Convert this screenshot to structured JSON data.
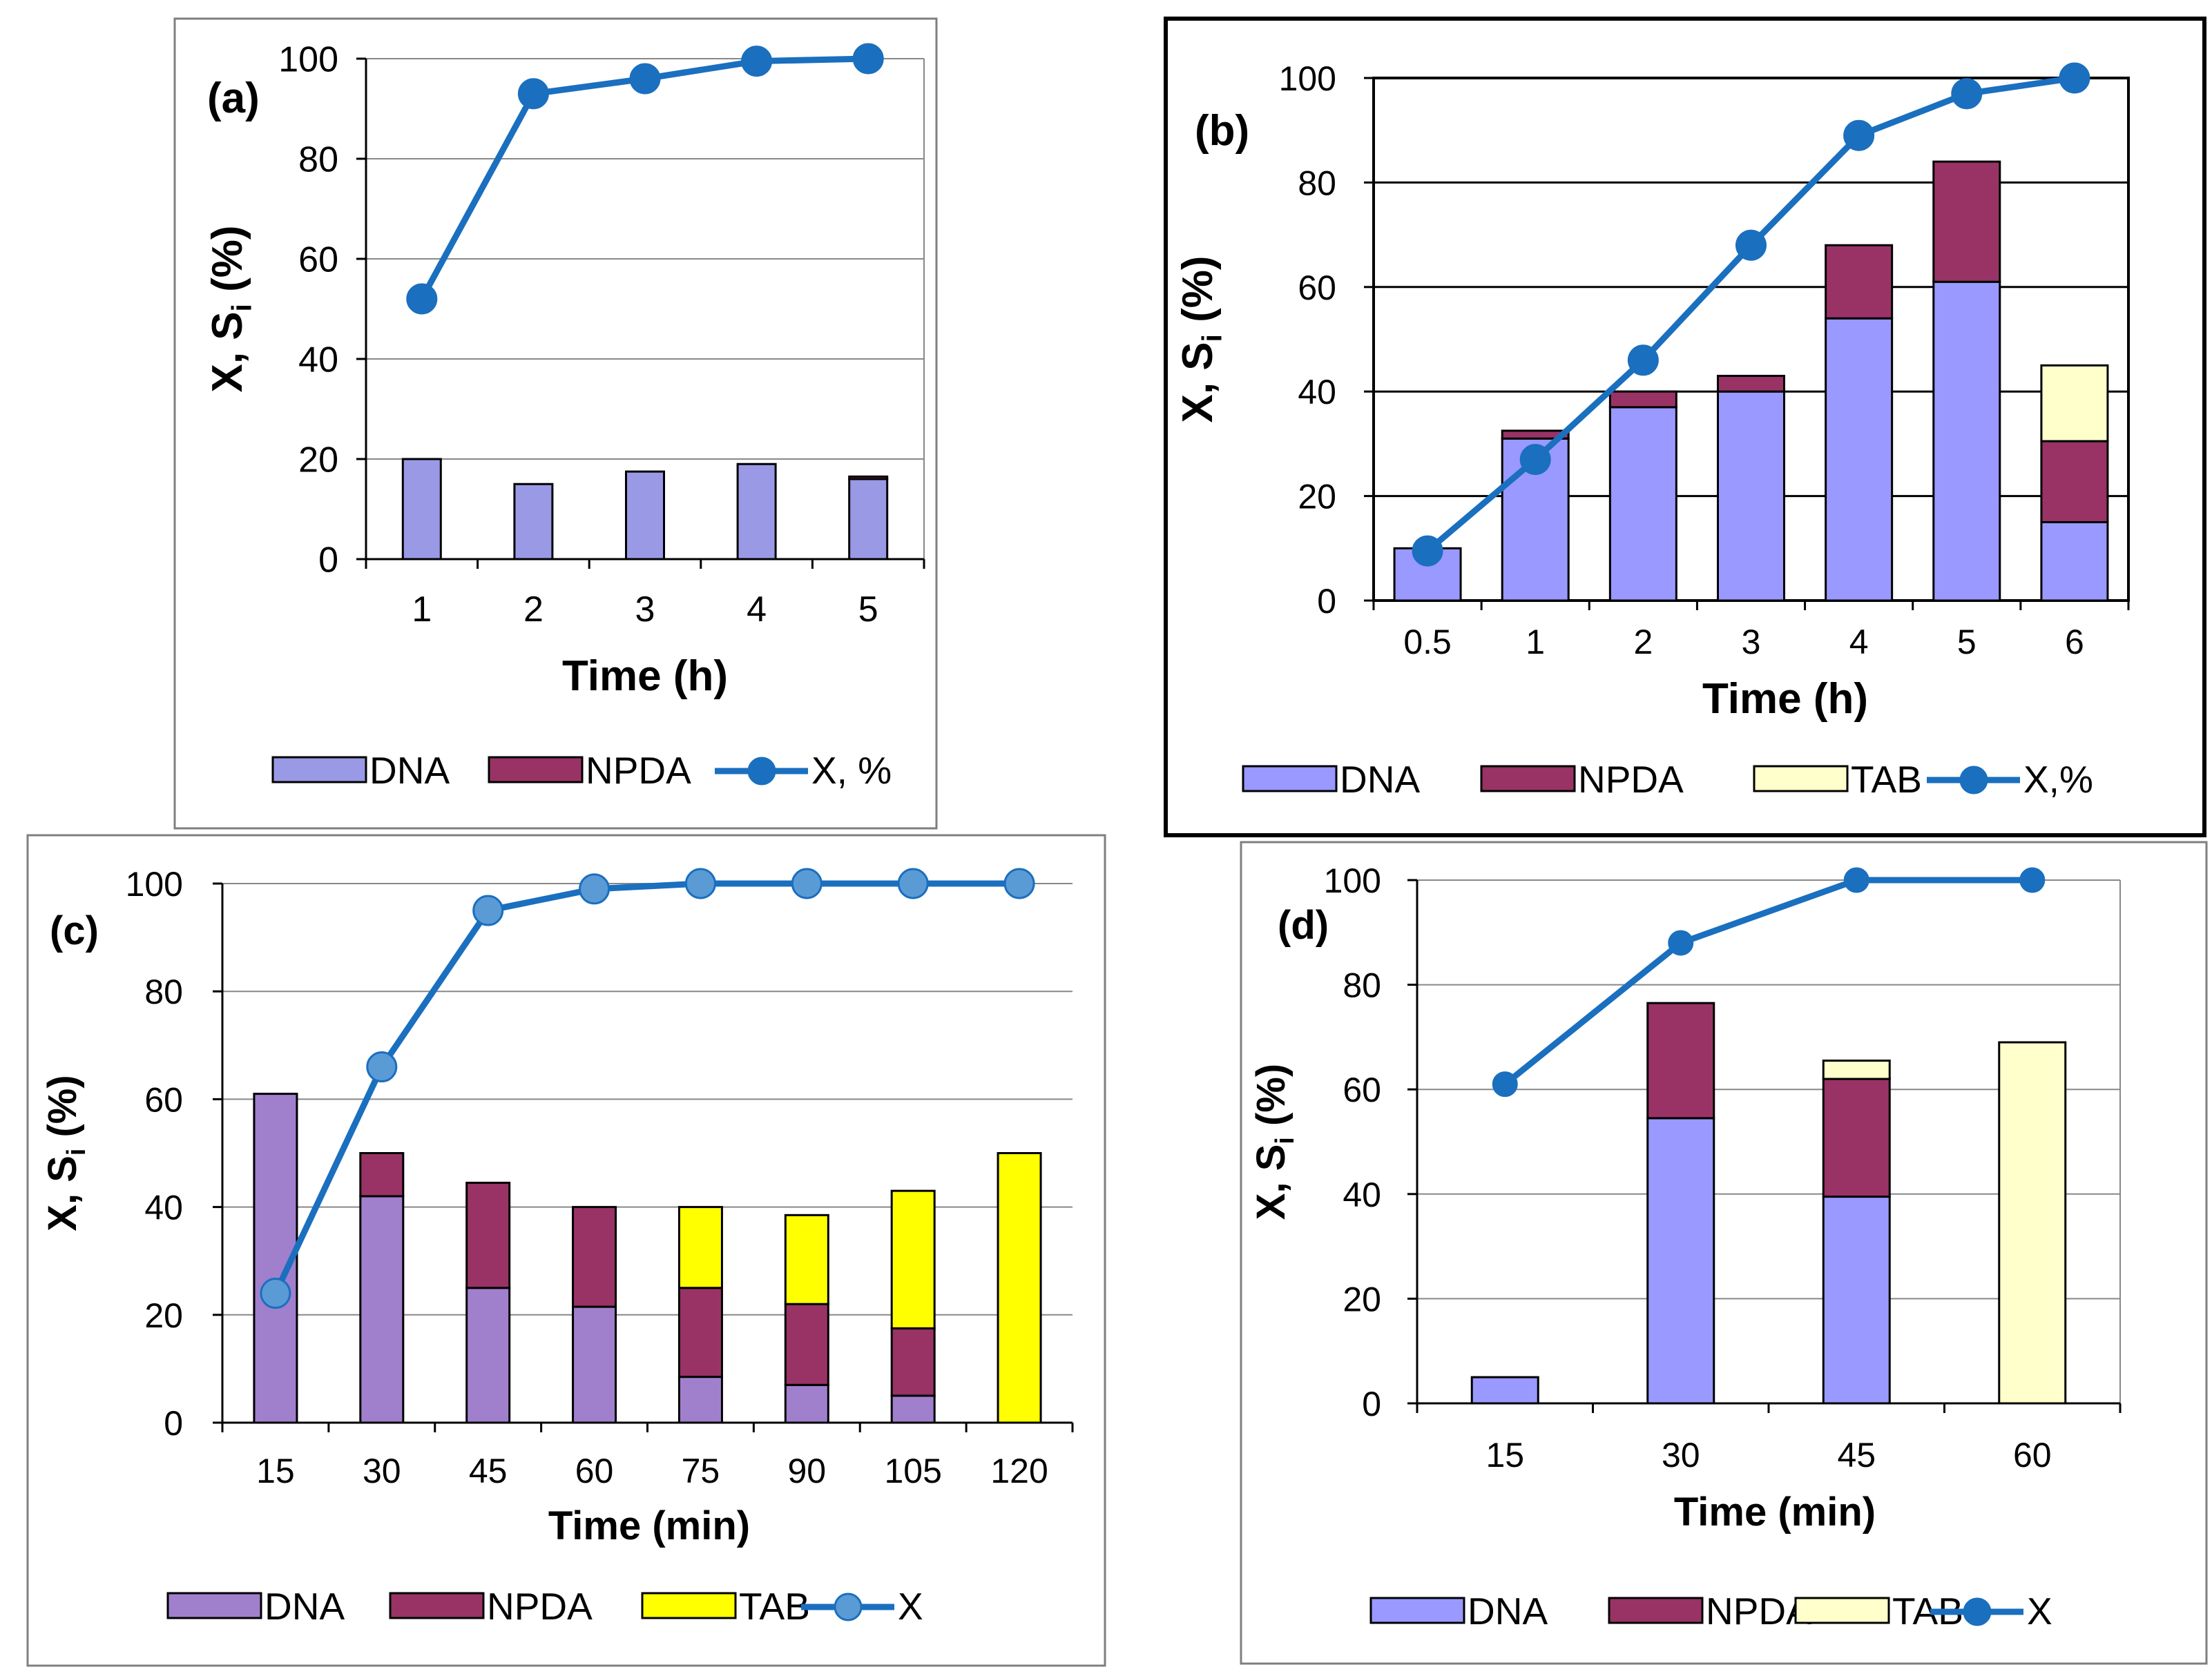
{
  "colors": {
    "dna_a": "#9999e6",
    "dna_b": "#9999ff",
    "dna_c": "#a080cc",
    "dna_d": "#9999ff",
    "npda": "#993366",
    "tab_light": "#ffffcc",
    "tab_yellow": "#ffff00",
    "line": "#1a6fbf",
    "marker_dark": "#1a6fbf",
    "marker_light": "#5b9bd5"
  },
  "chart_data": [
    {
      "id": "a",
      "type": "bar",
      "stacked": true,
      "panel_label": "(a)",
      "xlabel": "Time (h)",
      "ylabel_main": "X, S",
      "ylabel_sub": "i",
      "ylabel_tail": " (%)",
      "ylim": [
        0,
        100
      ],
      "yticks": [
        "0",
        "20",
        "40",
        "60",
        "80",
        "100"
      ],
      "categories": [
        "1",
        "2",
        "3",
        "4",
        "5"
      ],
      "series": [
        {
          "name": "DNA",
          "values": [
            20,
            15,
            17.5,
            19,
            16
          ]
        },
        {
          "name": "NPDA",
          "values": [
            0,
            0,
            0,
            0,
            0.5
          ]
        }
      ],
      "line": {
        "name": "X, %",
        "values": [
          52,
          93,
          96,
          99.5,
          100
        ]
      },
      "legend": [
        "DNA",
        "NPDA",
        "X, %"
      ],
      "grid": true
    },
    {
      "id": "b",
      "type": "bar",
      "stacked": true,
      "panel_label": "(b)",
      "xlabel": "Time (h)",
      "ylabel_main": "X, S",
      "ylabel_sub": "i",
      "ylabel_tail": " (%)",
      "ylim": [
        0,
        100
      ],
      "yticks": [
        "0",
        "20",
        "40",
        "60",
        "80",
        "100"
      ],
      "categories": [
        "0.5",
        "1",
        "2",
        "3",
        "4",
        "5",
        "6"
      ],
      "series": [
        {
          "name": "DNA",
          "values": [
            10,
            31,
            37,
            40,
            54,
            61,
            15
          ]
        },
        {
          "name": "NPDA",
          "values": [
            0,
            1.5,
            3,
            3,
            14,
            23,
            15.5
          ]
        },
        {
          "name": "TAB",
          "values": [
            0,
            0,
            0,
            0,
            0,
            0,
            14.5
          ]
        }
      ],
      "line": {
        "name": "X,%",
        "values": [
          9.5,
          27,
          46,
          68,
          89,
          97,
          100
        ]
      },
      "legend": [
        "DNA",
        "NPDA",
        "TAB",
        "X,%"
      ],
      "grid": true
    },
    {
      "id": "c",
      "type": "bar",
      "stacked": true,
      "panel_label": "(c)",
      "xlabel": "Time (min)",
      "ylabel_main": "X, S",
      "ylabel_sub": "i",
      "ylabel_tail": " (%)",
      "ylim": [
        0,
        100
      ],
      "yticks": [
        "0",
        "20",
        "40",
        "60",
        "80",
        "100"
      ],
      "categories": [
        "15",
        "30",
        "45",
        "60",
        "75",
        "90",
        "105",
        "120"
      ],
      "series": [
        {
          "name": "DNA",
          "values": [
            61,
            42,
            25,
            21.5,
            8.5,
            7,
            5,
            0
          ]
        },
        {
          "name": "NPDA",
          "values": [
            0,
            8,
            19.5,
            18.5,
            16.5,
            15,
            12.5,
            0
          ]
        },
        {
          "name": "TAB",
          "values": [
            0,
            0,
            0,
            0,
            15,
            16.5,
            25.5,
            50
          ]
        }
      ],
      "line": {
        "name": "X",
        "values": [
          24,
          66,
          95,
          99,
          100,
          100,
          100,
          100
        ]
      },
      "legend": [
        "DNA",
        "NPDA",
        "TAB",
        "X"
      ],
      "grid": true
    },
    {
      "id": "d",
      "type": "bar",
      "stacked": true,
      "panel_label": "(d)",
      "xlabel": "Time (min)",
      "ylabel_main": "X, S",
      "ylabel_sub": "i",
      "ylabel_tail": " (%)",
      "ylim": [
        0,
        100
      ],
      "yticks": [
        "0",
        "20",
        "40",
        "60",
        "80",
        "100"
      ],
      "categories": [
        "15",
        "30",
        "45",
        "60"
      ],
      "series": [
        {
          "name": "DNA",
          "values": [
            5,
            54.5,
            39.5,
            0
          ]
        },
        {
          "name": "NPDA",
          "values": [
            0,
            22,
            22.5,
            0
          ]
        },
        {
          "name": "TAB",
          "values": [
            0,
            0,
            3.5,
            69
          ]
        }
      ],
      "line": {
        "name": "X",
        "values": [
          61,
          88,
          100,
          100
        ]
      },
      "legend": [
        "DNA",
        "NPDA",
        "TAB",
        "X"
      ],
      "grid": true
    }
  ]
}
